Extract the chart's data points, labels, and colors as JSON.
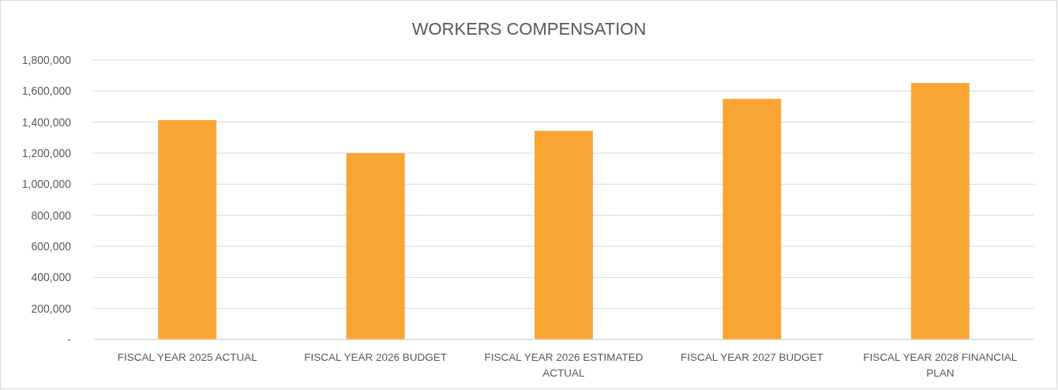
{
  "chart_data": {
    "type": "bar",
    "title": "WORKERS COMPENSATION",
    "categories": [
      "FISCAL YEAR 2025 ACTUAL",
      "FISCAL YEAR 2026 BUDGET",
      "FISCAL YEAR 2026 ESTIMATED ACTUAL",
      "FISCAL YEAR 2027 BUDGET",
      "FISCAL YEAR 2028 FINANCIAL PLAN"
    ],
    "values": [
      1413000,
      1200000,
      1344000,
      1550000,
      1652000
    ],
    "color": "#f9a533",
    "ylim": [
      0,
      1800000
    ],
    "yticks": [
      {
        "value": 0,
        "label": "-"
      },
      {
        "value": 200000,
        "label": "200,000"
      },
      {
        "value": 400000,
        "label": "400,000"
      },
      {
        "value": 600000,
        "label": "600,000"
      },
      {
        "value": 800000,
        "label": "800,000"
      },
      {
        "value": 1000000,
        "label": "1,000,000"
      },
      {
        "value": 1200000,
        "label": "1,200,000"
      },
      {
        "value": 1400000,
        "label": "1,400,000"
      },
      {
        "value": 1600000,
        "label": "1,600,000"
      },
      {
        "value": 1800000,
        "label": "1,800,000"
      }
    ],
    "grid": "y"
  }
}
